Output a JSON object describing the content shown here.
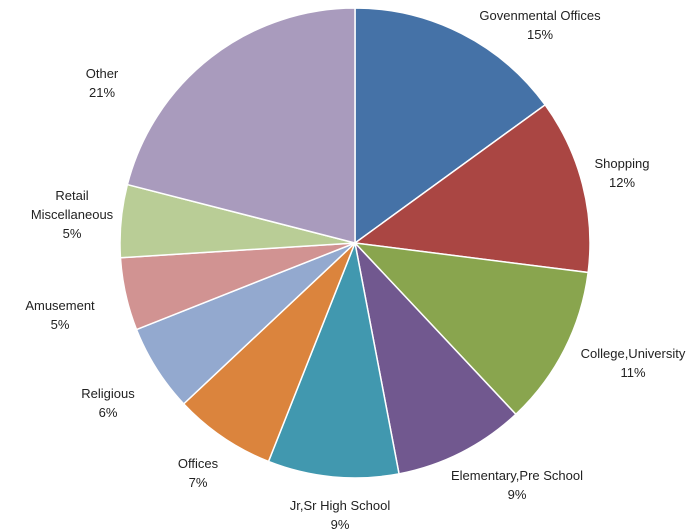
{
  "chart_data": {
    "type": "pie",
    "title": "",
    "unit": "%",
    "slices": [
      {
        "label": "Govenmental Offices",
        "value": 15,
        "value_text": "15%",
        "color": "#4572A7"
      },
      {
        "label": "Shopping",
        "value": 12,
        "value_text": "12%",
        "color": "#AA4643"
      },
      {
        "label": "College,University",
        "value": 11,
        "value_text": "11%",
        "color": "#89A54E"
      },
      {
        "label": "Elementary,Pre School",
        "value": 9,
        "value_text": "9%",
        "color": "#71588F"
      },
      {
        "label": "Jr,Sr High School",
        "value": 9,
        "value_text": "9%",
        "color": "#4198AF"
      },
      {
        "label": "Offices",
        "value": 7,
        "value_text": "7%",
        "color": "#DB843D"
      },
      {
        "label": "Religious",
        "value": 6,
        "value_text": "6%",
        "color": "#93A9CF"
      },
      {
        "label": "Amusement",
        "value": 5,
        "value_text": "5%",
        "color": "#D19392"
      },
      {
        "label": "Retail Miscellaneous",
        "label_lines": [
          "Retail",
          "Miscellaneous"
        ],
        "value": 5,
        "value_text": "5%",
        "color": "#B9CD96"
      },
      {
        "label": "Other",
        "value": 21,
        "value_text": "21%",
        "color": "#A99BBD"
      }
    ]
  }
}
